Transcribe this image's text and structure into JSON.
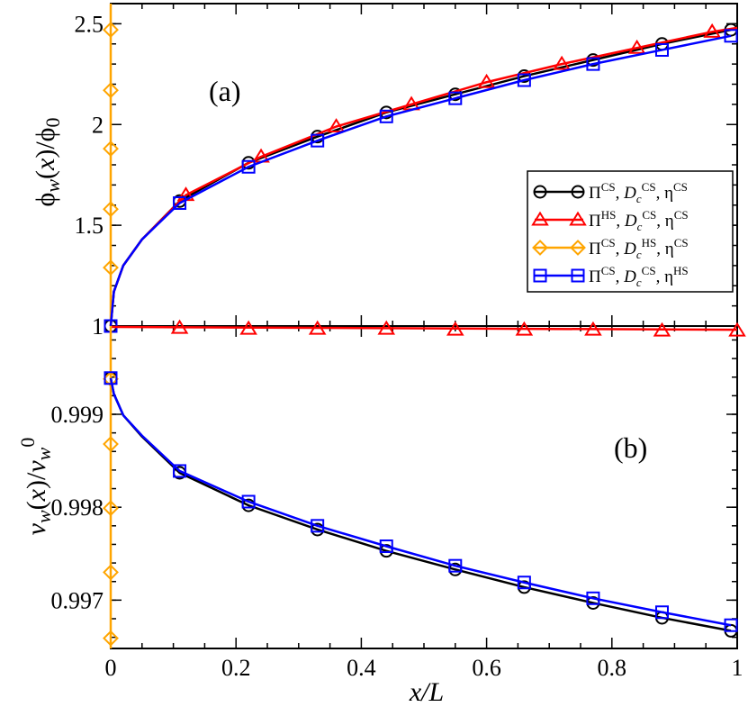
{
  "chart_data": [
    {
      "panel": "(a)",
      "type": "line",
      "ylabel": "ϕw(x)/ϕ0",
      "xlim": [
        0,
        1
      ],
      "ylim": [
        1,
        2.6
      ],
      "yticks": [
        "1",
        "1.5",
        "2",
        "2.5"
      ],
      "grid": false,
      "legend_position": "right",
      "series": [
        {
          "name": "Π^CS, D_c^CS, η^CS",
          "color": "#000000",
          "marker": "circle",
          "x": [
            0,
            0.005,
            0.02,
            0.05,
            0.11,
            0.22,
            0.33,
            0.44,
            0.55,
            0.66,
            0.77,
            0.88,
            0.99
          ],
          "y": [
            1,
            1.17,
            1.3,
            1.43,
            1.62,
            1.81,
            1.94,
            2.06,
            2.15,
            2.24,
            2.32,
            2.4,
            2.47
          ],
          "marker_x": [
            0,
            0.11,
            0.22,
            0.33,
            0.44,
            0.55,
            0.66,
            0.77,
            0.88,
            0.99
          ],
          "marker_y": [
            1,
            1.62,
            1.81,
            1.94,
            2.06,
            2.15,
            2.24,
            2.32,
            2.4,
            2.47
          ]
        },
        {
          "name": "Π^HS, D_c^CS, η^CS",
          "color": "#ff0000",
          "marker": "triangle",
          "x": [
            0,
            0.005,
            0.02,
            0.05,
            0.12,
            0.24,
            0.36,
            0.48,
            0.6,
            0.72,
            0.84,
            0.96,
            1.0
          ],
          "y": [
            1,
            1.17,
            1.3,
            1.43,
            1.65,
            1.84,
            1.99,
            2.1,
            2.21,
            2.3,
            2.38,
            2.46,
            2.48
          ],
          "marker_x": [
            0.12,
            0.24,
            0.36,
            0.48,
            0.6,
            0.72,
            0.84,
            0.96
          ],
          "marker_y": [
            1.65,
            1.84,
            1.99,
            2.1,
            2.21,
            2.3,
            2.38,
            2.46
          ]
        },
        {
          "name": "Π^CS, D_c^HS, η^CS",
          "color": "#ffa500",
          "marker": "diamond",
          "x": [
            0,
            0
          ],
          "y": [
            1,
            2.6
          ],
          "marker_x": [
            0,
            0,
            0,
            0,
            0
          ],
          "marker_y": [
            1.29,
            1.58,
            1.88,
            2.17,
            2.47
          ]
        },
        {
          "name": "Π^CS, D_c^CS, η^HS",
          "color": "#0000ff",
          "marker": "square",
          "x": [
            0,
            0.005,
            0.02,
            0.05,
            0.11,
            0.22,
            0.33,
            0.44,
            0.55,
            0.66,
            0.77,
            0.88,
            0.99
          ],
          "y": [
            1,
            1.17,
            1.3,
            1.43,
            1.61,
            1.79,
            1.92,
            2.04,
            2.13,
            2.22,
            2.3,
            2.37,
            2.44
          ],
          "marker_x": [
            0,
            0.11,
            0.22,
            0.33,
            0.44,
            0.55,
            0.66,
            0.77,
            0.88,
            0.99
          ],
          "marker_y": [
            1,
            1.61,
            1.79,
            1.92,
            2.04,
            2.13,
            2.22,
            2.3,
            2.37,
            2.44
          ]
        }
      ]
    },
    {
      "panel": "(b)",
      "type": "line",
      "xlabel": "x/L",
      "ylabel": "vw(x)/vw0",
      "xlim": [
        0,
        1
      ],
      "ylim": [
        0.99648,
        0.99995
      ],
      "xticks": [
        "0",
        "0.2",
        "0.4",
        "0.6",
        "0.8",
        "1"
      ],
      "yticks": [
        "0.997",
        "0.998",
        "0.999"
      ],
      "grid": false,
      "series": [
        {
          "name": "Π^CS, D_c^CS, η^CS",
          "color": "#000000",
          "marker": "circle",
          "x": [
            0,
            0.005,
            0.02,
            0.05,
            0.11,
            0.22,
            0.33,
            0.44,
            0.55,
            0.66,
            0.77,
            0.88,
            0.99
          ],
          "y": [
            0.99939,
            0.99922,
            0.99899,
            0.99876,
            0.99837,
            0.99802,
            0.99776,
            0.99753,
            0.99733,
            0.99714,
            0.99697,
            0.99681,
            0.99667
          ],
          "marker_x": [
            0,
            0.11,
            0.22,
            0.33,
            0.44,
            0.55,
            0.66,
            0.77,
            0.88,
            0.99
          ],
          "marker_y": [
            0.99939,
            0.99837,
            0.99802,
            0.99776,
            0.99753,
            0.99733,
            0.99714,
            0.99697,
            0.99681,
            0.99667
          ]
        },
        {
          "name": "Π^HS, D_c^CS, η^CS",
          "color": "#ff0000",
          "marker": "triangle",
          "x": [
            0,
            1
          ],
          "y": [
            0.99994,
            0.99991
          ],
          "marker_x": [
            0.11,
            0.22,
            0.33,
            0.44,
            0.55,
            0.66,
            0.77,
            0.88,
            1.0
          ],
          "marker_y": [
            0.99993,
            0.99992,
            0.99992,
            0.99992,
            0.99991,
            0.99991,
            0.99991,
            0.9999,
            0.9999
          ]
        },
        {
          "name": "Π^CS, D_c^HS, η^CS",
          "color": "#ffa500",
          "marker": "diamond",
          "x": [
            0,
            0
          ],
          "y": [
            0.99648,
            0.99995
          ],
          "marker_x": [
            0,
            0,
            0,
            0,
            0
          ],
          "marker_y": [
            0.99659,
            0.9973,
            0.99799,
            0.99868,
            0.99938
          ]
        },
        {
          "name": "Π^CS, D_c^CS, η^HS",
          "color": "#0000ff",
          "marker": "square",
          "x": [
            0,
            0.005,
            0.02,
            0.05,
            0.11,
            0.22,
            0.33,
            0.44,
            0.55,
            0.66,
            0.77,
            0.88,
            0.99
          ],
          "y": [
            0.99939,
            0.99922,
            0.99899,
            0.99877,
            0.99839,
            0.99806,
            0.9978,
            0.99758,
            0.99737,
            0.99719,
            0.99702,
            0.99687,
            0.99673
          ],
          "marker_x": [
            0,
            0.11,
            0.22,
            0.33,
            0.44,
            0.55,
            0.66,
            0.77,
            0.88,
            0.99
          ],
          "marker_y": [
            0.99939,
            0.99839,
            0.99806,
            0.9978,
            0.99758,
            0.99737,
            0.99719,
            0.99702,
            0.99687,
            0.99673
          ]
        }
      ]
    }
  ]
}
